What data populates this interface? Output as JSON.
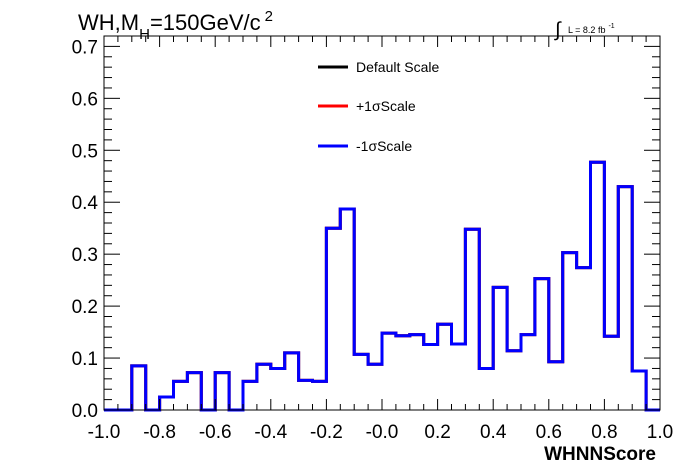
{
  "chart_data": {
    "type": "line",
    "style": "step-histogram",
    "title": {
      "prefix": "WH,M",
      "subscript": "H",
      "value": "=150GeV/c",
      "superscript": "2"
    },
    "luminosity": {
      "integral_symbol": "∫",
      "text": "L = 8.2 fb",
      "exponent": "-1"
    },
    "xlabel": "WHNNScore",
    "ylabel": "",
    "xlim": [
      -1.0,
      1.0
    ],
    "ylim": [
      0,
      0.72
    ],
    "x_ticks": [
      "-1.0",
      "-0.8",
      "-0.6",
      "-0.4",
      "-0.2",
      "-0.0",
      "0.2",
      "0.4",
      "0.6",
      "0.8",
      "1.0"
    ],
    "x_tick_values": [
      -1.0,
      -0.8,
      -0.6,
      -0.4,
      -0.2,
      0.0,
      0.2,
      0.4,
      0.6,
      0.8,
      1.0
    ],
    "y_ticks": [
      "0.0",
      "0.1",
      "0.2",
      "0.3",
      "0.4",
      "0.5",
      "0.6",
      "0.7"
    ],
    "y_tick_values": [
      0.0,
      0.1,
      0.2,
      0.3,
      0.4,
      0.5,
      0.6,
      0.7
    ],
    "grid": false,
    "legend_position": "top-center",
    "bin_edges": [
      -1.0,
      -0.95,
      -0.9,
      -0.85,
      -0.8,
      -0.75,
      -0.7,
      -0.65,
      -0.6,
      -0.55,
      -0.5,
      -0.45,
      -0.4,
      -0.35,
      -0.3,
      -0.25,
      -0.2,
      -0.15,
      -0.1,
      -0.05,
      0.0,
      0.05,
      0.1,
      0.15,
      0.2,
      0.25,
      0.3,
      0.35,
      0.4,
      0.45,
      0.5,
      0.55,
      0.6,
      0.65,
      0.7,
      0.75,
      0.8,
      0.85,
      0.9,
      0.95,
      1.0
    ],
    "series": [
      {
        "name": "Default Scale",
        "color": "#000000",
        "values": [
          0,
          0,
          0.085,
          0,
          0.025,
          0.055,
          0.072,
          0,
          0.072,
          0,
          0.055,
          0.088,
          0.08,
          0.11,
          0.057,
          0.055,
          0.35,
          0.387,
          0.107,
          0.088,
          0.148,
          0.143,
          0.145,
          0.126,
          0.165,
          0.127,
          0.348,
          0.08,
          0.236,
          0.114,
          0.145,
          0.253,
          0.093,
          0.303,
          0.274,
          0.477,
          0.142,
          0.43,
          0.075,
          0
        ]
      },
      {
        "name": "+1σScale",
        "color": "#ff0000",
        "values": [
          0,
          0,
          0.085,
          0,
          0.025,
          0.055,
          0.072,
          0,
          0.072,
          0,
          0.055,
          0.088,
          0.08,
          0.11,
          0.057,
          0.055,
          0.35,
          0.387,
          0.107,
          0.088,
          0.148,
          0.143,
          0.145,
          0.126,
          0.165,
          0.127,
          0.348,
          0.08,
          0.236,
          0.114,
          0.145,
          0.253,
          0.093,
          0.303,
          0.274,
          0.477,
          0.142,
          0.43,
          0.075,
          0
        ]
      },
      {
        "name": "-1σScale",
        "color": "#0000ff",
        "values": [
          0,
          0,
          0.085,
          0,
          0.025,
          0.055,
          0.072,
          0,
          0.072,
          0,
          0.055,
          0.088,
          0.08,
          0.11,
          0.057,
          0.055,
          0.35,
          0.387,
          0.107,
          0.088,
          0.148,
          0.143,
          0.145,
          0.126,
          0.165,
          0.127,
          0.348,
          0.08,
          0.236,
          0.114,
          0.145,
          0.253,
          0.093,
          0.303,
          0.274,
          0.477,
          0.142,
          0.43,
          0.075,
          0
        ]
      }
    ]
  }
}
